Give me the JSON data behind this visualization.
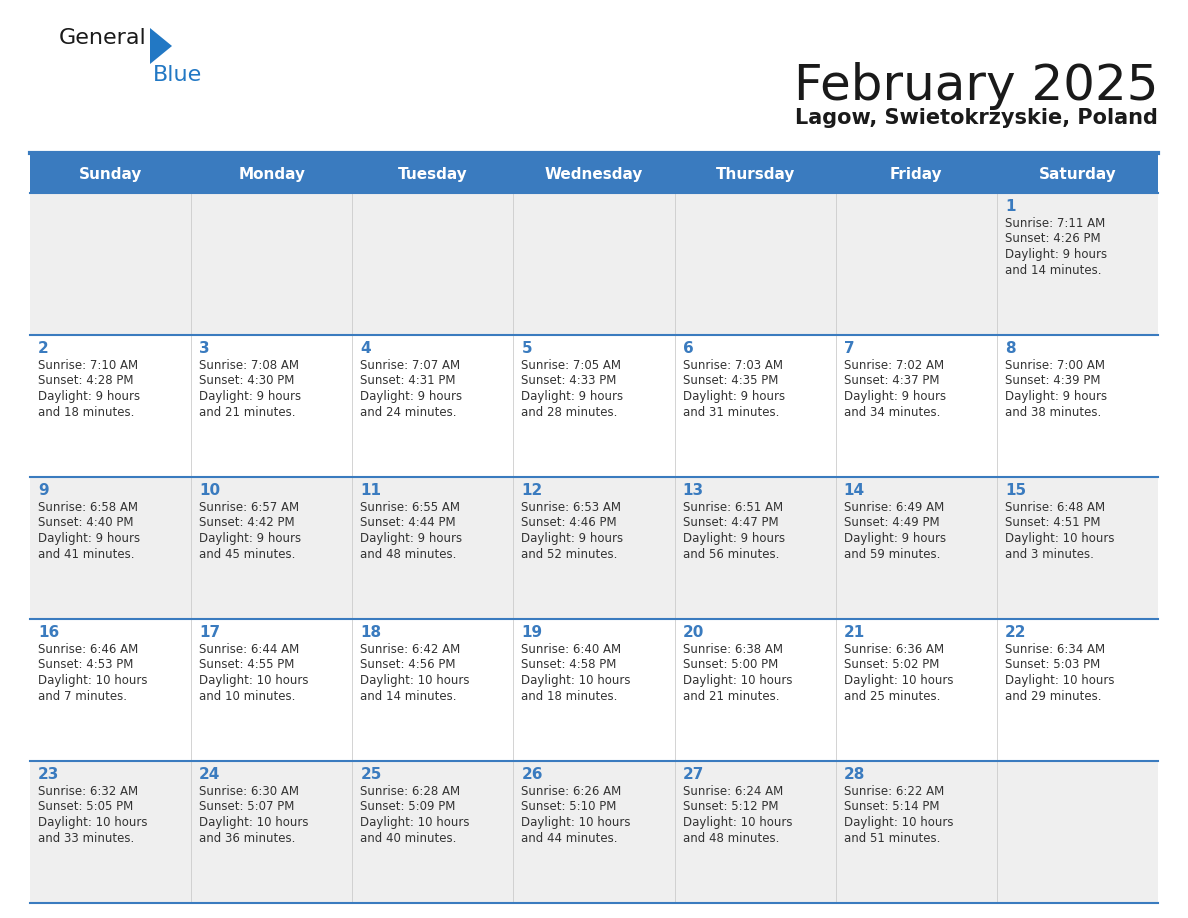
{
  "title": "February 2025",
  "subtitle": "Lagow, Swietokrzyskie, Poland",
  "days_of_week": [
    "Sunday",
    "Monday",
    "Tuesday",
    "Wednesday",
    "Thursday",
    "Friday",
    "Saturday"
  ],
  "header_bg": "#3a7bbf",
  "header_text": "#ffffff",
  "row_bg_even": "#efefef",
  "row_bg_odd": "#ffffff",
  "cell_border": "#3a7bbf",
  "day_number_color": "#3a7bbf",
  "info_text_color": "#333333",
  "title_color": "#1a1a1a",
  "subtitle_color": "#1a1a1a",
  "logo_general_color": "#1a1a1a",
  "logo_blue_color": "#2278c4",
  "weeks": [
    [
      {
        "day": null,
        "info": ""
      },
      {
        "day": null,
        "info": ""
      },
      {
        "day": null,
        "info": ""
      },
      {
        "day": null,
        "info": ""
      },
      {
        "day": null,
        "info": ""
      },
      {
        "day": null,
        "info": ""
      },
      {
        "day": 1,
        "info": "Sunrise: 7:11 AM\nSunset: 4:26 PM\nDaylight: 9 hours\nand 14 minutes."
      }
    ],
    [
      {
        "day": 2,
        "info": "Sunrise: 7:10 AM\nSunset: 4:28 PM\nDaylight: 9 hours\nand 18 minutes."
      },
      {
        "day": 3,
        "info": "Sunrise: 7:08 AM\nSunset: 4:30 PM\nDaylight: 9 hours\nand 21 minutes."
      },
      {
        "day": 4,
        "info": "Sunrise: 7:07 AM\nSunset: 4:31 PM\nDaylight: 9 hours\nand 24 minutes."
      },
      {
        "day": 5,
        "info": "Sunrise: 7:05 AM\nSunset: 4:33 PM\nDaylight: 9 hours\nand 28 minutes."
      },
      {
        "day": 6,
        "info": "Sunrise: 7:03 AM\nSunset: 4:35 PM\nDaylight: 9 hours\nand 31 minutes."
      },
      {
        "day": 7,
        "info": "Sunrise: 7:02 AM\nSunset: 4:37 PM\nDaylight: 9 hours\nand 34 minutes."
      },
      {
        "day": 8,
        "info": "Sunrise: 7:00 AM\nSunset: 4:39 PM\nDaylight: 9 hours\nand 38 minutes."
      }
    ],
    [
      {
        "day": 9,
        "info": "Sunrise: 6:58 AM\nSunset: 4:40 PM\nDaylight: 9 hours\nand 41 minutes."
      },
      {
        "day": 10,
        "info": "Sunrise: 6:57 AM\nSunset: 4:42 PM\nDaylight: 9 hours\nand 45 minutes."
      },
      {
        "day": 11,
        "info": "Sunrise: 6:55 AM\nSunset: 4:44 PM\nDaylight: 9 hours\nand 48 minutes."
      },
      {
        "day": 12,
        "info": "Sunrise: 6:53 AM\nSunset: 4:46 PM\nDaylight: 9 hours\nand 52 minutes."
      },
      {
        "day": 13,
        "info": "Sunrise: 6:51 AM\nSunset: 4:47 PM\nDaylight: 9 hours\nand 56 minutes."
      },
      {
        "day": 14,
        "info": "Sunrise: 6:49 AM\nSunset: 4:49 PM\nDaylight: 9 hours\nand 59 minutes."
      },
      {
        "day": 15,
        "info": "Sunrise: 6:48 AM\nSunset: 4:51 PM\nDaylight: 10 hours\nand 3 minutes."
      }
    ],
    [
      {
        "day": 16,
        "info": "Sunrise: 6:46 AM\nSunset: 4:53 PM\nDaylight: 10 hours\nand 7 minutes."
      },
      {
        "day": 17,
        "info": "Sunrise: 6:44 AM\nSunset: 4:55 PM\nDaylight: 10 hours\nand 10 minutes."
      },
      {
        "day": 18,
        "info": "Sunrise: 6:42 AM\nSunset: 4:56 PM\nDaylight: 10 hours\nand 14 minutes."
      },
      {
        "day": 19,
        "info": "Sunrise: 6:40 AM\nSunset: 4:58 PM\nDaylight: 10 hours\nand 18 minutes."
      },
      {
        "day": 20,
        "info": "Sunrise: 6:38 AM\nSunset: 5:00 PM\nDaylight: 10 hours\nand 21 minutes."
      },
      {
        "day": 21,
        "info": "Sunrise: 6:36 AM\nSunset: 5:02 PM\nDaylight: 10 hours\nand 25 minutes."
      },
      {
        "day": 22,
        "info": "Sunrise: 6:34 AM\nSunset: 5:03 PM\nDaylight: 10 hours\nand 29 minutes."
      }
    ],
    [
      {
        "day": 23,
        "info": "Sunrise: 6:32 AM\nSunset: 5:05 PM\nDaylight: 10 hours\nand 33 minutes."
      },
      {
        "day": 24,
        "info": "Sunrise: 6:30 AM\nSunset: 5:07 PM\nDaylight: 10 hours\nand 36 minutes."
      },
      {
        "day": 25,
        "info": "Sunrise: 6:28 AM\nSunset: 5:09 PM\nDaylight: 10 hours\nand 40 minutes."
      },
      {
        "day": 26,
        "info": "Sunrise: 6:26 AM\nSunset: 5:10 PM\nDaylight: 10 hours\nand 44 minutes."
      },
      {
        "day": 27,
        "info": "Sunrise: 6:24 AM\nSunset: 5:12 PM\nDaylight: 10 hours\nand 48 minutes."
      },
      {
        "day": 28,
        "info": "Sunrise: 6:22 AM\nSunset: 5:14 PM\nDaylight: 10 hours\nand 51 minutes."
      },
      {
        "day": null,
        "info": ""
      }
    ]
  ]
}
